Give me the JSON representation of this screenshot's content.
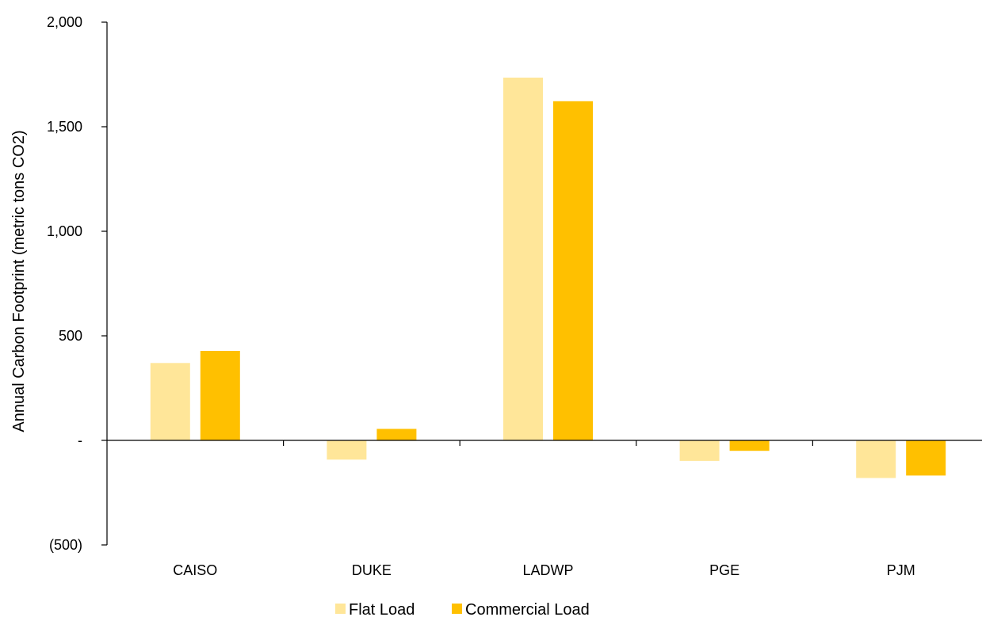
{
  "chart_data": {
    "type": "bar",
    "categories": [
      "CAISO",
      "DUKE",
      "LADWP",
      "PGE",
      "PJM"
    ],
    "series": [
      {
        "name": "Flat Load",
        "color": "#FFE699",
        "values": [
          370,
          -92,
          1735,
          -98,
          -180
        ]
      },
      {
        "name": "Commercial Load",
        "color": "#FFC000",
        "values": [
          428,
          55,
          1622,
          -50,
          -168
        ]
      }
    ],
    "title": "",
    "xlabel": "",
    "ylabel": "Annual Carbon Footprint (metric tons CO2)",
    "ylim": [
      -500,
      2000
    ],
    "yticks": [
      {
        "value": 2000,
        "label": "2,000"
      },
      {
        "value": 1500,
        "label": "1,500"
      },
      {
        "value": 1000,
        "label": "1,000"
      },
      {
        "value": 500,
        "label": "500"
      },
      {
        "value": 0,
        "label": "-"
      },
      {
        "value": -500,
        "label": "(500)"
      }
    ],
    "grid": false,
    "legend_position": "bottom"
  }
}
